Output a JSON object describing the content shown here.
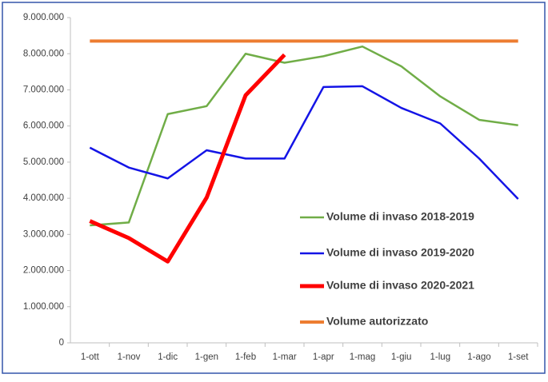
{
  "chart_data": {
    "type": "line",
    "categories": [
      "1-ott",
      "1-nov",
      "1-dic",
      "1-gen",
      "1-feb",
      "1-mar",
      "1-apr",
      "1-mag",
      "1-giu",
      "1-lug",
      "1-ago",
      "1-set"
    ],
    "series": [
      {
        "name": "Volume di invaso 2018-2019",
        "color": "#70ad47",
        "width": 2.5,
        "values": [
          3250000,
          3330000,
          6330000,
          6550000,
          8000000,
          7750000,
          7930000,
          8200000,
          7650000,
          6820000,
          6170000,
          6020000
        ]
      },
      {
        "name": "Volume di invaso 2019-2020",
        "color": "#1414e6",
        "width": 2.5,
        "values": [
          5400000,
          4850000,
          4550000,
          5330000,
          5100000,
          5100000,
          7080000,
          7100000,
          6500000,
          6070000,
          5100000,
          3980000
        ]
      },
      {
        "name": "Volume di invaso 2020-2021",
        "color": "#ff0000",
        "width": 5,
        "values": [
          3370000,
          2900000,
          2250000,
          4020000,
          6850000,
          7970000,
          null,
          null,
          null,
          null,
          null,
          null
        ]
      },
      {
        "name": "Volume autorizzato",
        "color": "#ed7d31",
        "width": 4,
        "values": [
          8350000,
          8350000,
          8350000,
          8350000,
          8350000,
          8350000,
          8350000,
          8350000,
          8350000,
          8350000,
          8350000,
          8350000
        ]
      }
    ],
    "ylim": [
      0,
      9000000
    ],
    "yticks": [
      {
        "value": 0,
        "label": "0"
      },
      {
        "value": 1000000,
        "label": "1.000.000"
      },
      {
        "value": 2000000,
        "label": "2.000.000"
      },
      {
        "value": 3000000,
        "label": "3.000.000"
      },
      {
        "value": 4000000,
        "label": "4.000.000"
      },
      {
        "value": 5000000,
        "label": "5.000.000"
      },
      {
        "value": 6000000,
        "label": "6.000.000"
      },
      {
        "value": 7000000,
        "label": "7.000.000"
      },
      {
        "value": 8000000,
        "label": "8.000.000"
      },
      {
        "value": 9000000,
        "label": "9.000.000"
      }
    ],
    "grid": false,
    "legend": "lower right"
  }
}
